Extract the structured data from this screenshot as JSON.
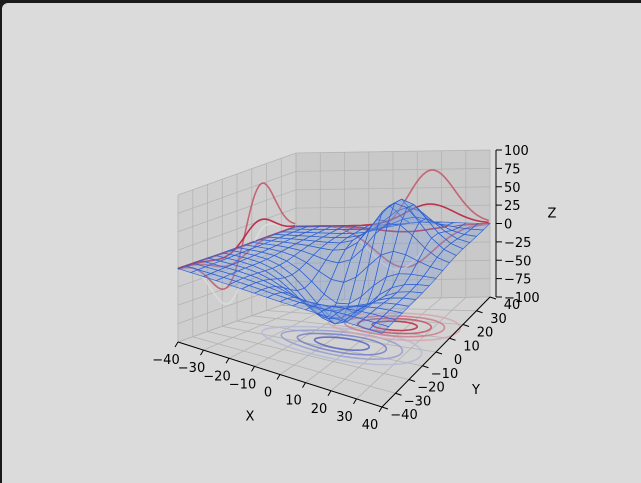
{
  "chart_data": {
    "type": "surface3d",
    "title": "",
    "xlabel": "X",
    "ylabel": "Y",
    "zlabel": "Z",
    "xlim": [
      -40,
      40
    ],
    "ylim": [
      -40,
      40
    ],
    "zlim": [
      -100,
      100
    ],
    "x_ticks": [
      "−40",
      "−30",
      "−20",
      "−10",
      "0",
      "10",
      "20",
      "30",
      "40"
    ],
    "y_ticks": [
      "−40",
      "−30",
      "−20",
      "−10",
      "0",
      "10",
      "20",
      "30",
      "40"
    ],
    "z_ticks": [
      "−100",
      "−75",
      "−50",
      "−25",
      "0",
      "25",
      "50",
      "75",
      "100"
    ],
    "grid": true,
    "surface": {
      "style": "wireframe over translucent surface",
      "color": "#2f5fd0",
      "stride": 5,
      "function": "gaussian bumps",
      "bumps": [
        {
          "x": 5,
          "y": -5,
          "z": -75,
          "spread": 12
        },
        {
          "x": 15,
          "y": 15,
          "z": 80,
          "spread": 10
        }
      ]
    },
    "contour_projections": [
      {
        "plane": "z",
        "offset": -100,
        "colormap": "coolwarm"
      },
      {
        "plane": "x",
        "offset": -40,
        "colormap": "coolwarm"
      },
      {
        "plane": "y",
        "offset": 40,
        "colormap": "coolwarm"
      }
    ]
  }
}
